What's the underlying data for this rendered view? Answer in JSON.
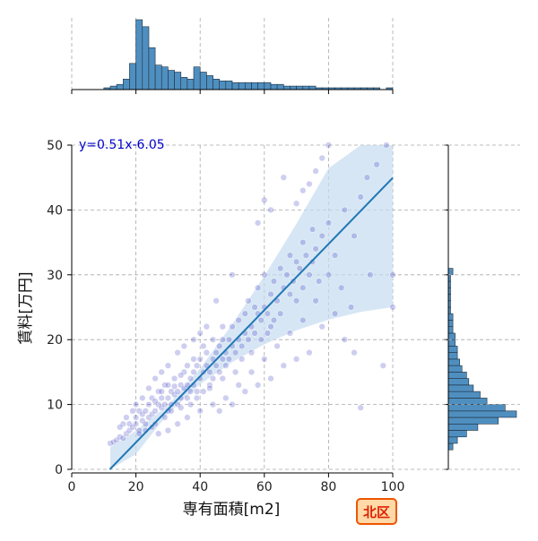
{
  "badge": {
    "label": "北区"
  },
  "chart_data": {
    "type": "scatter",
    "xlabel": "専有面積[m2]",
    "ylabel": "賃料[万円]",
    "xlim": [
      0,
      100
    ],
    "ylim": [
      0,
      50
    ],
    "xticks": [
      0,
      20,
      40,
      60,
      80,
      100
    ],
    "yticks": [
      0,
      10,
      20,
      30,
      40,
      50
    ],
    "grid": true,
    "regression": {
      "equation": "y=0.51x-6.05",
      "slope": 0.51,
      "intercept": -6.05,
      "color": "#1f77b4",
      "band_color": "#c6dbef"
    },
    "point_color": "#2222bb",
    "bar_color": "#4f8fc0",
    "points": [
      [
        12,
        4
      ],
      [
        13,
        4.2
      ],
      [
        14,
        4.5
      ],
      [
        15,
        5
      ],
      [
        16,
        4.8
      ],
      [
        17,
        5.5
      ],
      [
        18,
        6
      ],
      [
        18,
        7
      ],
      [
        19,
        6.5
      ],
      [
        20,
        7
      ],
      [
        20,
        8
      ],
      [
        21,
        6
      ],
      [
        21,
        9
      ],
      [
        22,
        7.5
      ],
      [
        22,
        8.5
      ],
      [
        23,
        7
      ],
      [
        23,
        9
      ],
      [
        24,
        8
      ],
      [
        24,
        10
      ],
      [
        25,
        8.5
      ],
      [
        25,
        11
      ],
      [
        26,
        9
      ],
      [
        26,
        7
      ],
      [
        27,
        10
      ],
      [
        27,
        12
      ],
      [
        28,
        9.5
      ],
      [
        28,
        11
      ],
      [
        29,
        10
      ],
      [
        29,
        13
      ],
      [
        30,
        11
      ],
      [
        30,
        9
      ],
      [
        31,
        12
      ],
      [
        31,
        10
      ],
      [
        32,
        11.5
      ],
      [
        32,
        14
      ],
      [
        33,
        12
      ],
      [
        33,
        10
      ],
      [
        34,
        13
      ],
      [
        34,
        11
      ],
      [
        35,
        12.5
      ],
      [
        35,
        15
      ],
      [
        36,
        13
      ],
      [
        36,
        11
      ],
      [
        37,
        14
      ],
      [
        37,
        12
      ],
      [
        38,
        15
      ],
      [
        38,
        13
      ],
      [
        39,
        16
      ],
      [
        39,
        12
      ],
      [
        40,
        14
      ],
      [
        40,
        17
      ],
      [
        41,
        15
      ],
      [
        41,
        12
      ],
      [
        42,
        16
      ],
      [
        42,
        18
      ],
      [
        43,
        15
      ],
      [
        43,
        13
      ],
      [
        44,
        17
      ],
      [
        44,
        14
      ],
      [
        45,
        18
      ],
      [
        45,
        16
      ],
      [
        46,
        19
      ],
      [
        46,
        15
      ],
      [
        47,
        17
      ],
      [
        47,
        20
      ],
      [
        48,
        18
      ],
      [
        48,
        16
      ],
      [
        49,
        20
      ],
      [
        49,
        17
      ],
      [
        50,
        19
      ],
      [
        50,
        22
      ],
      [
        51,
        18
      ],
      [
        52,
        20
      ],
      [
        52,
        23
      ],
      [
        53,
        19
      ],
      [
        54,
        21
      ],
      [
        54,
        24
      ],
      [
        55,
        20
      ],
      [
        55,
        26
      ],
      [
        56,
        22
      ],
      [
        57,
        25
      ],
      [
        57,
        21
      ],
      [
        58,
        24
      ],
      [
        58,
        28
      ],
      [
        59,
        23
      ],
      [
        60,
        25
      ],
      [
        60,
        30
      ],
      [
        61,
        24
      ],
      [
        62,
        27
      ],
      [
        62,
        22
      ],
      [
        63,
        29
      ],
      [
        64,
        26
      ],
      [
        65,
        31
      ],
      [
        65,
        24
      ],
      [
        66,
        28
      ],
      [
        67,
        30
      ],
      [
        68,
        27
      ],
      [
        68,
        33
      ],
      [
        69,
        29
      ],
      [
        70,
        32
      ],
      [
        70,
        26
      ],
      [
        71,
        31
      ],
      [
        72,
        35
      ],
      [
        72,
        28
      ],
      [
        73,
        33
      ],
      [
        74,
        30
      ],
      [
        75,
        37
      ],
      [
        75,
        32
      ],
      [
        76,
        34
      ],
      [
        77,
        29
      ],
      [
        78,
        36
      ],
      [
        80,
        38
      ],
      [
        82,
        33
      ],
      [
        85,
        40
      ],
      [
        88,
        36
      ],
      [
        90,
        42
      ],
      [
        92,
        45
      ],
      [
        95,
        47
      ],
      [
        98,
        50
      ],
      [
        100,
        25
      ],
      [
        100,
        30
      ],
      [
        97,
        16
      ],
      [
        93,
        30
      ],
      [
        90,
        9.5
      ],
      [
        88,
        18
      ],
      [
        85,
        20
      ],
      [
        80,
        50
      ],
      [
        78,
        48
      ],
      [
        76,
        46
      ],
      [
        74,
        44
      ],
      [
        72,
        43
      ],
      [
        70,
        41
      ],
      [
        66,
        45
      ],
      [
        62,
        40
      ],
      [
        60,
        41.5
      ],
      [
        58,
        38
      ],
      [
        50,
        30
      ],
      [
        45,
        26
      ],
      [
        42,
        22
      ],
      [
        40,
        21
      ],
      [
        38,
        20
      ],
      [
        35,
        19
      ],
      [
        33,
        18
      ],
      [
        30,
        16
      ],
      [
        28,
        15
      ],
      [
        26,
        14
      ],
      [
        24,
        12.5
      ],
      [
        22,
        11
      ],
      [
        20,
        10
      ],
      [
        19,
        9
      ],
      [
        17,
        8
      ],
      [
        16,
        7
      ],
      [
        15,
        6.5
      ],
      [
        27,
        5.5
      ],
      [
        30,
        6
      ],
      [
        33,
        7
      ],
      [
        36,
        8
      ],
      [
        40,
        9
      ],
      [
        44,
        10
      ],
      [
        48,
        11
      ],
      [
        52,
        13
      ],
      [
        56,
        15
      ],
      [
        60,
        17
      ],
      [
        64,
        19
      ],
      [
        68,
        21
      ],
      [
        72,
        23
      ],
      [
        76,
        26
      ],
      [
        80,
        30
      ],
      [
        84,
        28
      ],
      [
        87,
        25
      ],
      [
        82,
        24
      ],
      [
        78,
        22
      ],
      [
        74,
        18
      ],
      [
        70,
        17
      ],
      [
        66,
        16
      ],
      [
        62,
        14
      ],
      [
        58,
        13
      ],
      [
        54,
        12
      ],
      [
        50,
        10
      ],
      [
        46,
        9
      ],
      [
        29,
        8
      ],
      [
        31,
        9
      ],
      [
        34,
        9.5
      ],
      [
        37,
        10
      ],
      [
        39,
        11
      ],
      [
        43,
        12.5
      ],
      [
        47,
        14
      ],
      [
        51,
        15
      ],
      [
        53,
        17
      ],
      [
        56,
        18
      ],
      [
        59,
        20
      ],
      [
        61,
        21
      ],
      [
        63,
        23
      ],
      [
        21,
        5.5
      ],
      [
        23,
        6
      ],
      [
        25,
        6.5
      ],
      [
        26,
        10.5
      ],
      [
        28,
        12
      ],
      [
        30,
        13
      ],
      [
        32,
        12.8
      ],
      [
        34,
        14.5
      ],
      [
        36,
        16
      ],
      [
        38,
        17
      ],
      [
        41,
        19
      ],
      [
        44,
        20
      ],
      [
        47,
        22
      ]
    ],
    "top_hist": {
      "bin_edges": [
        10,
        12,
        14,
        16,
        18,
        20,
        22,
        24,
        26,
        28,
        30,
        32,
        34,
        36,
        38,
        40,
        42,
        44,
        46,
        48,
        50,
        52,
        54,
        56,
        58,
        60,
        62,
        64,
        66,
        68,
        70,
        72,
        74,
        76,
        78,
        80,
        82,
        84,
        86,
        88,
        90,
        92,
        94,
        96,
        98,
        100
      ],
      "counts": [
        1,
        2,
        3,
        6,
        15,
        40,
        36,
        24,
        14,
        13,
        11,
        10,
        7,
        6,
        13,
        10,
        8,
        6,
        5,
        5,
        4,
        4,
        4,
        4,
        4,
        4,
        3,
        3,
        2,
        2,
        2,
        2,
        2,
        1,
        1,
        1,
        1,
        1,
        1,
        1,
        1,
        1,
        1,
        0,
        1
      ]
    },
    "right_hist": {
      "bin_edges": [
        3,
        4,
        5,
        6,
        7,
        8,
        9,
        10,
        11,
        12,
        13,
        14,
        15,
        16,
        17,
        18,
        19,
        20,
        21,
        22,
        23,
        24,
        25,
        26,
        27,
        28,
        29,
        30,
        31
      ],
      "counts": [
        2,
        4,
        8,
        13,
        22,
        30,
        25,
        17,
        14,
        11,
        9,
        8,
        6,
        5,
        4,
        4,
        3,
        3,
        2,
        2,
        2,
        1,
        1,
        1,
        1,
        1,
        1,
        2
      ]
    }
  }
}
